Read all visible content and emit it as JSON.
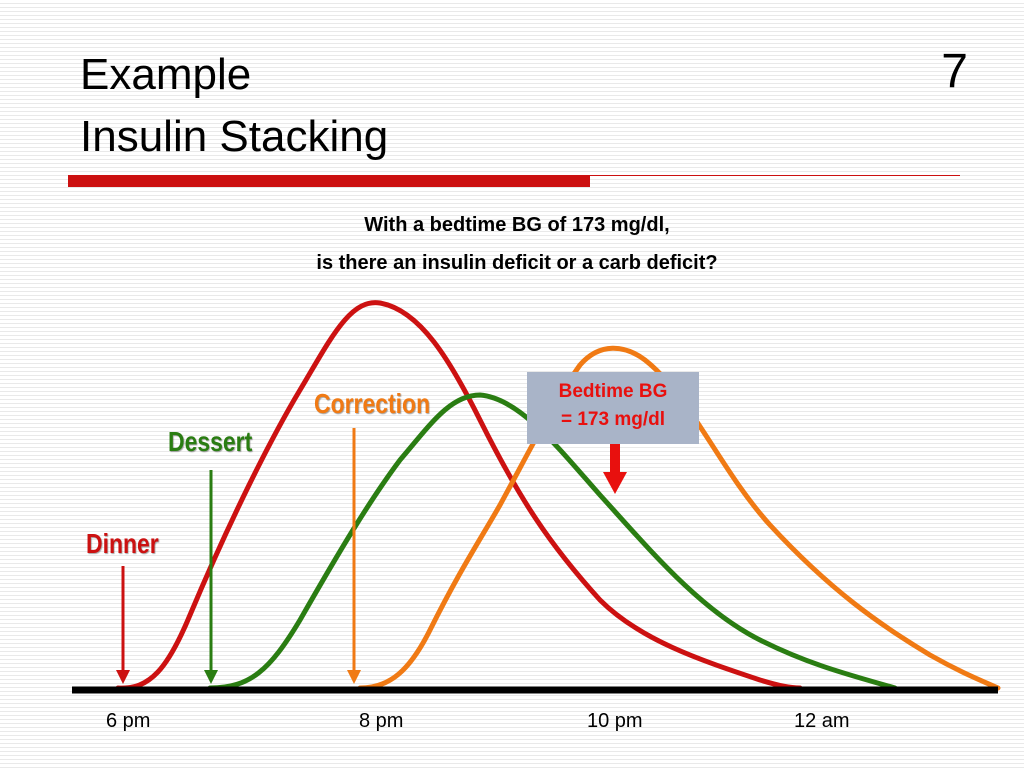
{
  "slide": {
    "title_line_1": "Example",
    "title_line_2": "Insulin Stacking",
    "slide_number": "7",
    "question_line_1": "With a bedtime BG of 173 mg/dl,",
    "question_line_2": "is there an insulin deficit or a carb deficit?",
    "accent_color": "#cc1111"
  },
  "events": {
    "dinner": {
      "label": "Dinner",
      "color": "#cc1111"
    },
    "dessert": {
      "label": "Dessert",
      "color": "#2a7d12"
    },
    "correction": {
      "label": "Correction",
      "color": "#f07a14"
    }
  },
  "bedtime_box": {
    "line_1": "Bedtime BG",
    "line_2": "= 173 mg/dl",
    "text_color": "#e8100e",
    "arrow_color": "#e8100e"
  },
  "chart_data": {
    "type": "line",
    "title": "",
    "xlabel": "",
    "ylabel": "",
    "x_ticks": [
      "6 pm",
      "8 pm",
      "10 pm",
      "12 am"
    ],
    "series": [
      {
        "curve": "dinner",
        "color": "#cc1111"
      },
      {
        "curve": "dessert",
        "color": "#2a7d12"
      },
      {
        "curve": "correction",
        "color": "#f07a14"
      }
    ]
  }
}
